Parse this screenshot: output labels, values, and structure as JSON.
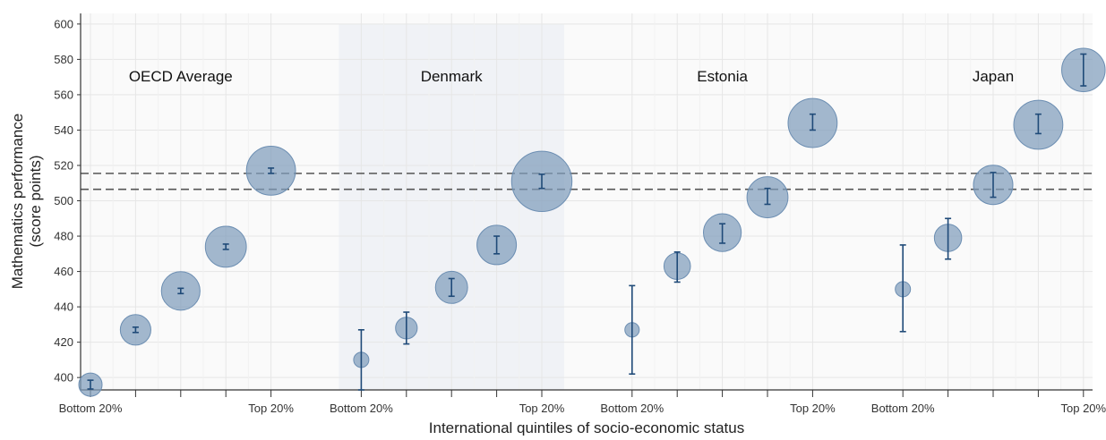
{
  "chart_data": {
    "type": "scatter",
    "title": "",
    "xlabel": "International quintiles of socio-economic status",
    "ylabel_line1": "Mathematics performance",
    "ylabel_line2": "(score points)",
    "ylim": [
      393,
      606
    ],
    "y_ticks": [
      400,
      420,
      440,
      460,
      480,
      500,
      520,
      540,
      560,
      580,
      600
    ],
    "x_tick_labels": [
      "Bottom 20%",
      "Top 20%"
    ],
    "reference_lines": [
      515.5,
      506.5
    ],
    "grid": true,
    "highlighted_group": "Denmark",
    "colors": {
      "bubble_fill": "#7f9cbb",
      "bubble_stroke": "#6c8eb2",
      "error_bar": "#1f4a78",
      "reference_line": "#555555",
      "highlight_band": "#f0f2f6",
      "plot_background": "#fafafa",
      "grid": "#e6e6e6"
    },
    "groups": [
      {
        "name": "OECD Average",
        "points": [
          {
            "quintile": 1,
            "value": 396,
            "ci_low": 393.5,
            "ci_high": 398.5,
            "bubble_size": 1.0
          },
          {
            "quintile": 2,
            "value": 427,
            "ci_low": 425.5,
            "ci_high": 428.5,
            "bubble_size": 1.45
          },
          {
            "quintile": 3,
            "value": 449,
            "ci_low": 447.5,
            "ci_high": 450.5,
            "bubble_size": 1.95
          },
          {
            "quintile": 4,
            "value": 474,
            "ci_low": 472.5,
            "ci_high": 475.5,
            "bubble_size": 2.1
          },
          {
            "quintile": 5,
            "value": 517,
            "ci_low": 515.5,
            "ci_high": 518.5,
            "bubble_size": 2.6
          }
        ]
      },
      {
        "name": "Denmark",
        "points": [
          {
            "quintile": 1,
            "value": 410,
            "ci_low": 393,
            "ci_high": 427,
            "bubble_size": 0.5
          },
          {
            "quintile": 2,
            "value": 428,
            "ci_low": 419,
            "ci_high": 437,
            "bubble_size": 0.9
          },
          {
            "quintile": 3,
            "value": 451,
            "ci_low": 446,
            "ci_high": 456,
            "bubble_size": 1.55
          },
          {
            "quintile": 4,
            "value": 475,
            "ci_low": 470,
            "ci_high": 480,
            "bubble_size": 2.0
          },
          {
            "quintile": 5,
            "value": 511,
            "ci_low": 507,
            "ci_high": 515,
            "bubble_size": 3.3
          }
        ]
      },
      {
        "name": "Estonia",
        "points": [
          {
            "quintile": 1,
            "value": 427,
            "ci_low": 402,
            "ci_high": 452,
            "bubble_size": 0.45
          },
          {
            "quintile": 2,
            "value": 463,
            "ci_low": 454,
            "ci_high": 471,
            "bubble_size": 1.2
          },
          {
            "quintile": 3,
            "value": 482,
            "ci_low": 476,
            "ci_high": 487,
            "bubble_size": 1.9
          },
          {
            "quintile": 4,
            "value": 502,
            "ci_low": 498,
            "ci_high": 507,
            "bubble_size": 2.1
          },
          {
            "quintile": 5,
            "value": 544,
            "ci_low": 540,
            "ci_high": 549,
            "bubble_size": 2.6
          }
        ]
      },
      {
        "name": "Japan",
        "points": [
          {
            "quintile": 1,
            "value": 450,
            "ci_low": 426,
            "ci_high": 475,
            "bubble_size": 0.5
          },
          {
            "quintile": 2,
            "value": 479,
            "ci_low": 467,
            "ci_high": 490,
            "bubble_size": 1.25
          },
          {
            "quintile": 3,
            "value": 509,
            "ci_low": 502,
            "ci_high": 516,
            "bubble_size": 2.0
          },
          {
            "quintile": 4,
            "value": 543,
            "ci_low": 538,
            "ci_high": 549,
            "bubble_size": 2.6
          },
          {
            "quintile": 5,
            "value": 574,
            "ci_low": 565,
            "ci_high": 583,
            "bubble_size": 2.25
          }
        ]
      }
    ]
  }
}
